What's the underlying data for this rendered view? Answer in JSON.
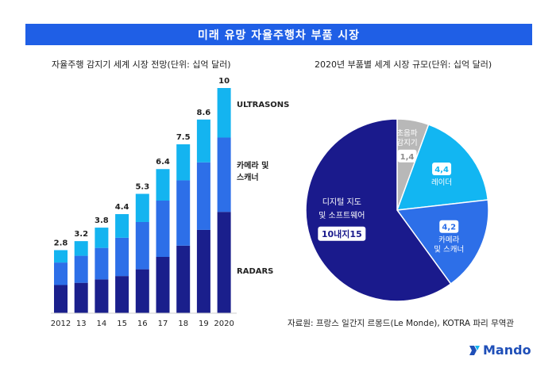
{
  "banner": {
    "title": "미래 유망 자율주행차 부품 시장"
  },
  "colors": {
    "banner": "#1f5fe6",
    "radars": "#1a1f8c",
    "camera": "#2d6fe8",
    "ultrasons": "#14b4f0",
    "digital": "#1a1a8c",
    "sensor": "#b8b8b8",
    "camera_pie": "#2d6fe8",
    "lidar": "#12b6f2"
  },
  "chart_data": [
    {
      "type": "bar",
      "stacked": true,
      "title": "자율주행 감지기 세계 시장 전망(단위: 십억 달러)",
      "categories": [
        "2012",
        "13",
        "14",
        "15",
        "16",
        "17",
        "18",
        "19",
        "2020"
      ],
      "totals": [
        "2.8",
        "3.2",
        "3.8",
        "4.4",
        "5.3",
        "6.4",
        "7.5",
        "8.6",
        "10"
      ],
      "series": [
        {
          "name": "RADARS",
          "values": [
            1.25,
            1.35,
            1.5,
            1.65,
            1.95,
            2.5,
            3.0,
            3.7,
            4.5
          ]
        },
        {
          "name": "카메라 및\n스캐너",
          "values": [
            1.0,
            1.2,
            1.4,
            1.7,
            2.1,
            2.5,
            2.9,
            3.0,
            3.3
          ]
        },
        {
          "name": "ULTRASONS",
          "values": [
            0.55,
            0.65,
            0.9,
            1.05,
            1.25,
            1.4,
            1.6,
            1.9,
            2.2
          ]
        }
      ],
      "ylim": [
        0,
        10
      ],
      "legend": {
        "ultrasons": "ULTRASONS",
        "camera_line1": "카메라 및",
        "camera_line2": "스캐너",
        "radars": "RADARS"
      }
    },
    {
      "type": "pie",
      "title": "2020년 부품별 세계 시장 규모(단위: 십억 달러)",
      "slices": [
        {
          "name": "초음파 감지기",
          "line1": "초음파",
          "line2": "감지기",
          "value": 1.4,
          "label": "1,4"
        },
        {
          "name": "레이더",
          "line1": "레이더",
          "line2": "",
          "value": 4.4,
          "label": "4,4"
        },
        {
          "name": "카메라 및 스캐너",
          "line1": "카메라",
          "line2": "및 스캐너",
          "value": 4.2,
          "label": "4,2"
        },
        {
          "name": "디지털 지도 및 소프트웨어",
          "line1": "디지털 지도",
          "line2": "및 소프트웨어",
          "value": 15,
          "label": "10내지15"
        }
      ]
    }
  ],
  "source": "자료원: 프랑스 일간지 르몽드(Le Monde), KOTRA 파리 무역관",
  "logo": {
    "text": "Mando"
  }
}
